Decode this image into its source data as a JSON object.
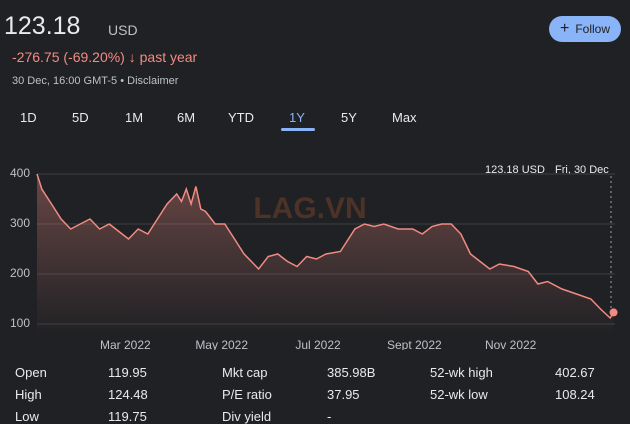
{
  "header": {
    "price": "123.18",
    "currency": "USD",
    "change": "-276.75 (-69.20%)",
    "period": "past year",
    "timestamp": "30 Dec, 16:00 GMT-5 • Disclaimer",
    "follow": "Follow"
  },
  "tabs": [
    "1D",
    "5D",
    "1M",
    "6M",
    "YTD",
    "1Y",
    "5Y",
    "Max"
  ],
  "active_tab": "1Y",
  "watermark": "LAG.VN",
  "tooltip": {
    "value": "123.18 USD",
    "date": "Fri, 30 Dec"
  },
  "chart_data": {
    "type": "line",
    "color": "#f28b82",
    "grid": true,
    "x": [
      1.0,
      1.1,
      1.3,
      1.5,
      1.7,
      1.9,
      2.1,
      2.3,
      2.5,
      2.7,
      2.9,
      3.1,
      3.3,
      3.5,
      3.7,
      3.9,
      4.0,
      4.1,
      4.2,
      4.3,
      4.4,
      4.5,
      4.7,
      4.9,
      5.1,
      5.3,
      5.5,
      5.6,
      5.8,
      6.0,
      6.2,
      6.4,
      6.6,
      6.8,
      7.0,
      7.3,
      7.6,
      7.8,
      8.0,
      8.2,
      8.5,
      8.8,
      9.0,
      9.2,
      9.4,
      9.6,
      9.8,
      10.0,
      10.2,
      10.4,
      10.6,
      10.9,
      11.2,
      11.4,
      11.6,
      11.9,
      12.2,
      12.5,
      12.7,
      12.9,
      12.97
    ],
    "values": [
      400,
      370,
      340,
      310,
      290,
      300,
      310,
      290,
      300,
      285,
      270,
      290,
      280,
      310,
      340,
      360,
      345,
      370,
      340,
      375,
      330,
      325,
      300,
      300,
      270,
      240,
      220,
      210,
      235,
      240,
      225,
      215,
      235,
      230,
      240,
      245,
      290,
      300,
      295,
      300,
      290,
      290,
      280,
      295,
      300,
      300,
      280,
      240,
      225,
      210,
      220,
      215,
      205,
      180,
      185,
      170,
      160,
      150,
      130,
      112,
      123.18
    ],
    "xlim": [
      1,
      13
    ],
    "xticks": [
      {
        "value": 3,
        "label": "Mar 2022"
      },
      {
        "value": 5,
        "label": "May 2022"
      },
      {
        "value": 7,
        "label": "Jul 2022"
      },
      {
        "value": 9,
        "label": "Sept 2022"
      },
      {
        "value": 11,
        "label": "Nov 2022"
      }
    ],
    "ylim": [
      78,
      438
    ],
    "yticks": [
      100,
      200,
      300,
      400
    ]
  },
  "stats": [
    [
      [
        "Open",
        "119.95"
      ],
      [
        "Mkt cap",
        "385.98B"
      ],
      [
        "52-wk high",
        "402.67"
      ]
    ],
    [
      [
        "High",
        "124.48"
      ],
      [
        "P/E ratio",
        "37.95"
      ],
      [
        "52-wk low",
        "108.24"
      ]
    ],
    [
      [
        "Low",
        "119.75"
      ],
      [
        "Div yield",
        "-"
      ]
    ]
  ]
}
